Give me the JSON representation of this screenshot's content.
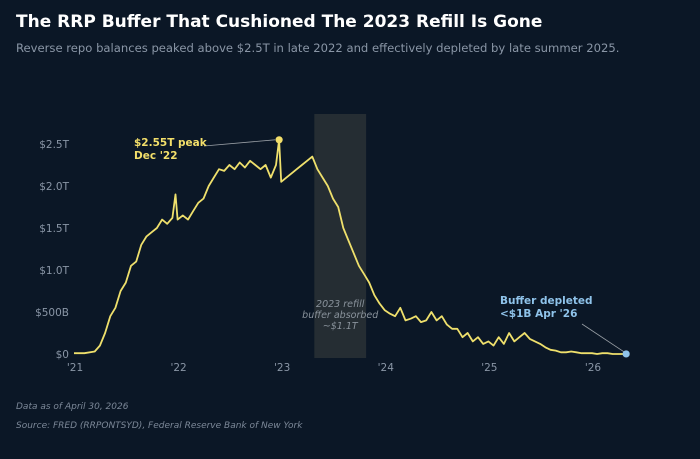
{
  "header": {
    "title": "The RRP Buffer That Cushioned The 2023 Refill Is Gone",
    "subtitle": "Reverse repo balances peaked above $2.5T in late 2022 and effectively depleted by late summer 2025."
  },
  "footer": {
    "data_as_of": "Data as of April 30, 2026",
    "source": "Source: FRED (RRPONTSYD), Federal Reserve Bank of New York"
  },
  "colors": {
    "background": "#0b1726",
    "line": "#efe06c",
    "peak_label": "#f3df6a",
    "depleted_label": "#8fc3ea",
    "shade": "#2a3136",
    "tick": "#8a96a6",
    "annotation": "#8a939c"
  },
  "chart_data": {
    "type": "line",
    "title": "The RRP Buffer That Cushioned The 2023 Refill Is Gone",
    "subtitle": "Reverse repo balances peaked above $2.5T in late 2022 and effectively depleted by late summer 2025.",
    "xlabel": "",
    "ylabel": "",
    "x_range": [
      2021.0,
      2026.33
    ],
    "ylim": [
      0,
      2.7
    ],
    "y_unit": "trillions USD",
    "grid": false,
    "legend": "none",
    "x_ticks": [
      {
        "value": 2021,
        "label": "'21"
      },
      {
        "value": 2022,
        "label": "'22"
      },
      {
        "value": 2023,
        "label": "'23"
      },
      {
        "value": 2024,
        "label": "'24"
      },
      {
        "value": 2025,
        "label": "'25"
      },
      {
        "value": 2026,
        "label": "'26"
      }
    ],
    "y_ticks": [
      {
        "value": 0,
        "label": "$0"
      },
      {
        "value": 0.5,
        "label": "$500B"
      },
      {
        "value": 1.0,
        "label": "$1.0T"
      },
      {
        "value": 1.5,
        "label": "$1.5T"
      },
      {
        "value": 2.0,
        "label": "$2.0T"
      },
      {
        "value": 2.5,
        "label": "$2.5T"
      }
    ],
    "series": [
      {
        "x": [
          2021.0,
          2021.1,
          2021.2,
          2021.25,
          2021.3,
          2021.35,
          2021.4,
          2021.45,
          2021.5,
          2021.55,
          2021.6,
          2021.65,
          2021.7,
          2021.75,
          2021.8,
          2021.85,
          2021.9,
          2021.95,
          2021.98,
          2022.0,
          2022.05,
          2022.1,
          2022.15,
          2022.2,
          2022.25,
          2022.3,
          2022.35,
          2022.4,
          2022.45,
          2022.5,
          2022.55,
          2022.6,
          2022.65,
          2022.7,
          2022.75,
          2022.8,
          2022.85,
          2022.9,
          2022.95,
          2022.98,
          2023.0,
          2023.05,
          2023.1,
          2023.15,
          2023.2,
          2023.25,
          2023.3,
          2023.35,
          2023.4,
          2023.45,
          2023.5,
          2023.55,
          2023.6,
          2023.65,
          2023.7,
          2023.75,
          2023.8,
          2023.85,
          2023.9,
          2023.95,
          2024.0,
          2024.05,
          2024.1,
          2024.15,
          2024.2,
          2024.25,
          2024.3,
          2024.35,
          2024.4,
          2024.45,
          2024.5,
          2024.55,
          2024.6,
          2024.65,
          2024.7,
          2024.75,
          2024.8,
          2024.85,
          2024.9,
          2024.95,
          2025.0,
          2025.05,
          2025.1,
          2025.15,
          2025.2,
          2025.25,
          2025.3,
          2025.35,
          2025.4,
          2025.45,
          2025.5,
          2025.55,
          2025.6,
          2025.65,
          2025.7,
          2025.75,
          2025.8,
          2025.85,
          2025.9,
          2025.95,
          2026.0,
          2026.05,
          2026.1,
          2026.15,
          2026.2,
          2026.25,
          2026.3,
          2026.33
        ],
        "values": [
          0.01,
          0.01,
          0.03,
          0.1,
          0.25,
          0.45,
          0.55,
          0.75,
          0.85,
          1.05,
          1.1,
          1.3,
          1.4,
          1.45,
          1.5,
          1.6,
          1.55,
          1.62,
          1.9,
          1.6,
          1.65,
          1.6,
          1.7,
          1.8,
          1.85,
          2.0,
          2.1,
          2.2,
          2.18,
          2.25,
          2.2,
          2.28,
          2.22,
          2.3,
          2.25,
          2.2,
          2.25,
          2.1,
          2.25,
          2.55,
          2.05,
          2.1,
          2.15,
          2.2,
          2.25,
          2.3,
          2.35,
          2.2,
          2.1,
          2.0,
          1.85,
          1.75,
          1.5,
          1.35,
          1.2,
          1.05,
          0.95,
          0.85,
          0.7,
          0.6,
          0.52,
          0.48,
          0.45,
          0.55,
          0.4,
          0.42,
          0.45,
          0.38,
          0.4,
          0.5,
          0.4,
          0.45,
          0.35,
          0.3,
          0.3,
          0.2,
          0.25,
          0.15,
          0.2,
          0.12,
          0.15,
          0.1,
          0.2,
          0.12,
          0.25,
          0.15,
          0.2,
          0.25,
          0.18,
          0.15,
          0.12,
          0.08,
          0.05,
          0.04,
          0.02,
          0.02,
          0.03,
          0.02,
          0.01,
          0.01,
          0.01,
          0.0,
          0.01,
          0.01,
          0.0,
          0.0,
          0.0,
          0.001
        ]
      }
    ],
    "shaded_region": {
      "x_start": 2023.32,
      "x_end": 2023.82,
      "label": "2023 refill\nbuffer absorbed\n~$1.1T"
    },
    "annotations": [
      {
        "name": "peak",
        "x": 2022.98,
        "y": 2.55,
        "text": "$2.55T peak\nDec '22"
      },
      {
        "name": "depleted",
        "x": 2026.33,
        "y": 0.001,
        "text": "Buffer depleted\n<$1B Apr '26"
      }
    ]
  }
}
